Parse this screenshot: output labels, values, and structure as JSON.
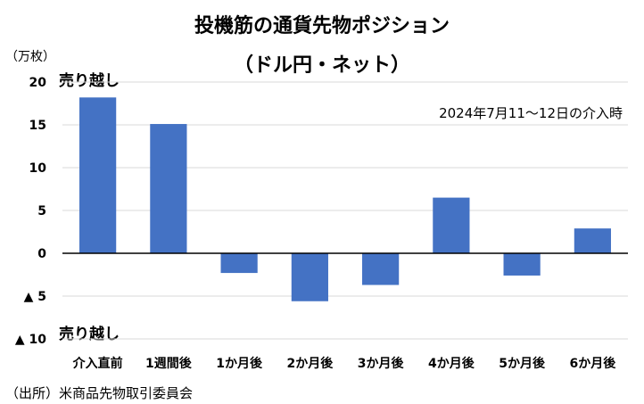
{
  "chart_data": {
    "type": "bar",
    "title_line1": "投機筋の通貨先物ポジション",
    "title_line2": "（ドル円・ネット）",
    "unit_label": "（万枚）",
    "annotation": "2024年7月11～12日の介入時",
    "upper_label": "売り越し",
    "lower_label": "売り越し",
    "source": "（出所）米商品先物取引委員会",
    "categories": [
      "介入直前",
      "1週間後",
      "1か月後",
      "2か月後",
      "3か月後",
      "4か月後",
      "5か月後",
      "6か月後"
    ],
    "values": [
      18.2,
      15.1,
      -2.3,
      -5.6,
      -3.7,
      6.5,
      -2.6,
      2.9
    ],
    "ylim": [
      -10,
      20
    ],
    "yticks": [
      20,
      15,
      10,
      5,
      0,
      -5,
      -10
    ],
    "ytick_labels": [
      "20",
      "15",
      "10",
      "5",
      "0",
      "▲ 5",
      "▲ 10"
    ],
    "grid": true,
    "bar_color": "#4472C4",
    "grid_color": "#d9d9d9"
  }
}
